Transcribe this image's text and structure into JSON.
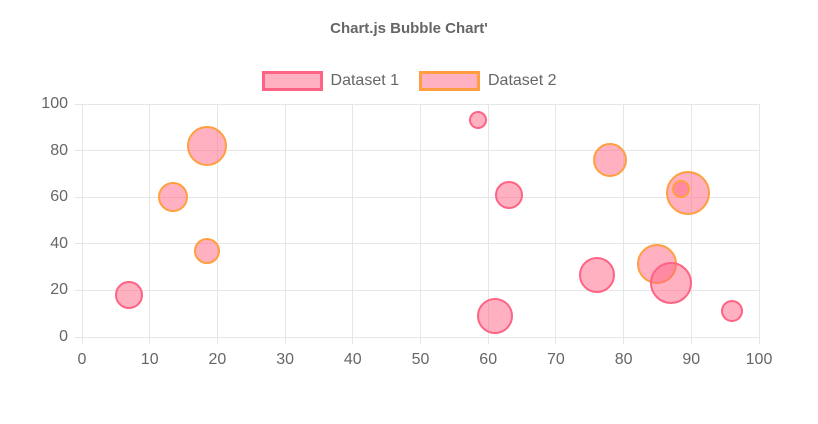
{
  "title": "Chart.js Bubble Chart'",
  "colors": {
    "background": "#ffffff",
    "grid": "#e6e6e6",
    "text": "#666666",
    "dataset1_border": "#ff6384",
    "dataset2_border": "#ff9f40",
    "bubble_fill": "rgba(255, 99, 132, 0.5)"
  },
  "legend": {
    "position": "top",
    "items": [
      {
        "label": "Dataset 1"
      },
      {
        "label": "Dataset 2"
      }
    ]
  },
  "chart_data": {
    "type": "scatter",
    "subtype": "bubble",
    "title": "Chart.js Bubble Chart'",
    "xlabel": "",
    "ylabel": "",
    "xlim": [
      0,
      100
    ],
    "ylim": [
      0,
      100
    ],
    "xticks": [
      0,
      10,
      20,
      30,
      40,
      50,
      60,
      70,
      80,
      90,
      100
    ],
    "yticks": [
      0,
      20,
      40,
      60,
      80,
      100
    ],
    "grid": true,
    "legend_position": "top",
    "series": [
      {
        "name": "Dataset 1",
        "border_color": "#ff6384",
        "fill_color": "rgba(255, 99, 132, 0.5)",
        "points": [
          {
            "x": 7,
            "y": 18,
            "r": 14
          },
          {
            "x": 58.5,
            "y": 93,
            "r": 9
          },
          {
            "x": 63,
            "y": 61,
            "r": 14
          },
          {
            "x": 61,
            "y": 9,
            "r": 18
          },
          {
            "x": 76,
            "y": 26.5,
            "r": 18
          },
          {
            "x": 87,
            "y": 23,
            "r": 21
          },
          {
            "x": 96,
            "y": 11,
            "r": 11
          }
        ]
      },
      {
        "name": "Dataset 2",
        "border_color": "#ff9f40",
        "fill_color": "rgba(255, 99, 132, 0.5)",
        "points": [
          {
            "x": 13.5,
            "y": 60,
            "r": 15
          },
          {
            "x": 18.5,
            "y": 82,
            "r": 20
          },
          {
            "x": 18.5,
            "y": 37,
            "r": 13
          },
          {
            "x": 78,
            "y": 76,
            "r": 17
          },
          {
            "x": 89.5,
            "y": 62,
            "r": 22
          },
          {
            "x": 88.5,
            "y": 63.5,
            "r": 9
          },
          {
            "x": 85,
            "y": 31.5,
            "r": 20
          }
        ]
      }
    ]
  }
}
